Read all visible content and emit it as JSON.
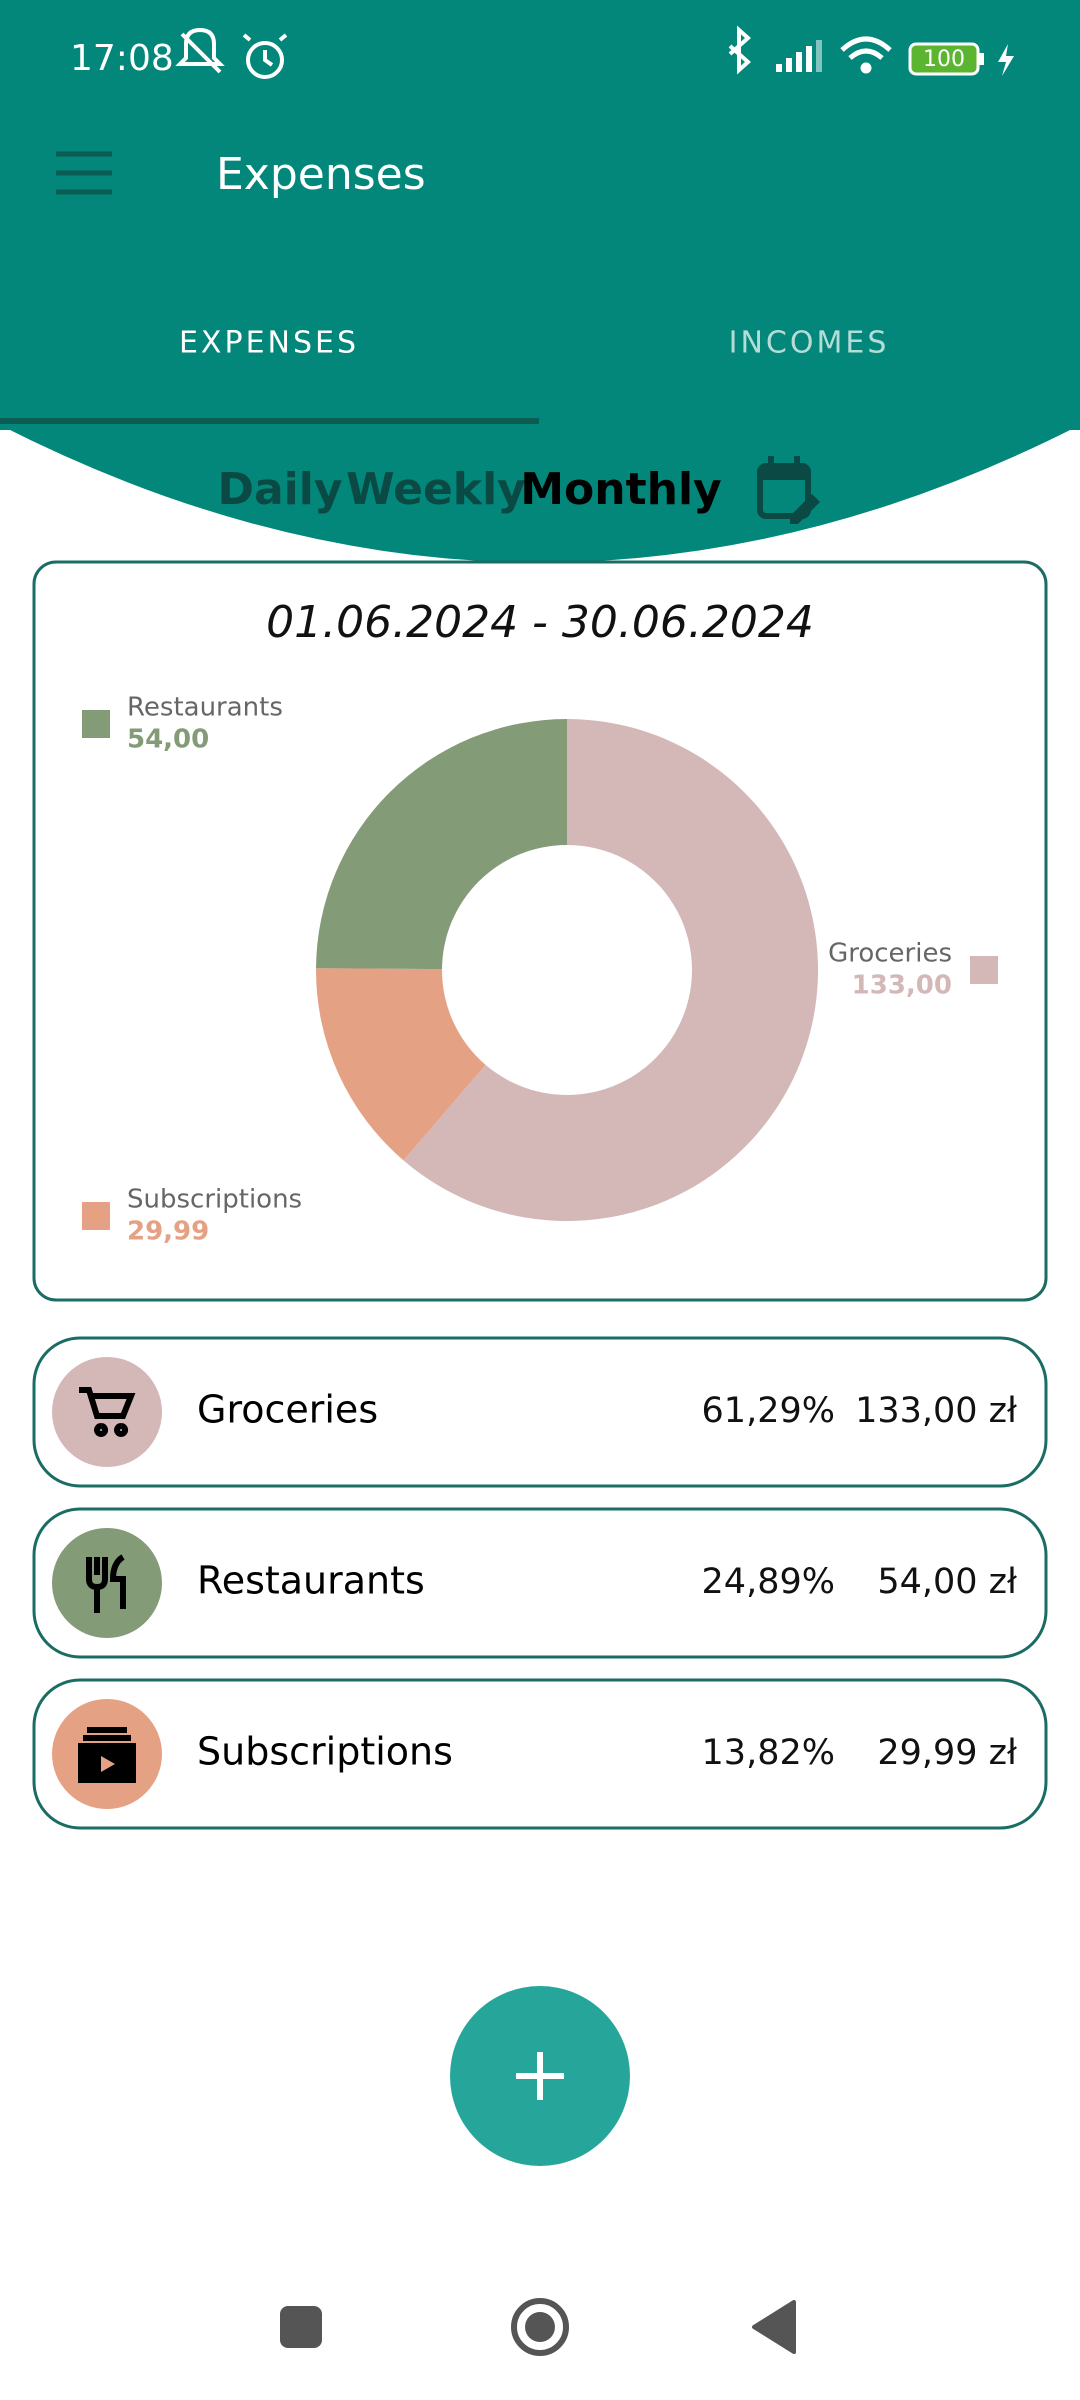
{
  "status_bar": {
    "time": "17:08",
    "battery": "100"
  },
  "app_bar": {
    "title": "Expenses"
  },
  "tabs": [
    "EXPENSES",
    "INCOMES"
  ],
  "periods": [
    "Daily",
    "Weekly",
    "Monthly"
  ],
  "chart_data": {
    "type": "donut",
    "title": "01.06.2024 - 30.06.2024",
    "categories": [
      "Groceries",
      "Subscriptions",
      "Restaurants"
    ],
    "values": [
      133,
      29.99,
      54
    ],
    "value_labels": [
      "133,00",
      "29,99",
      "54,00"
    ],
    "colors": [
      "#d3b8b7",
      "#e5a184",
      "#849b78"
    ]
  },
  "list": [
    {
      "name": "Groceries",
      "percent": "61,29%",
      "amount": "133,00 zł"
    },
    {
      "name": "Restaurants",
      "percent": "24,89%",
      "amount": "54,00 zł"
    },
    {
      "name": "Subscriptions",
      "percent": "13,82%",
      "amount": "29,99 zł"
    }
  ]
}
